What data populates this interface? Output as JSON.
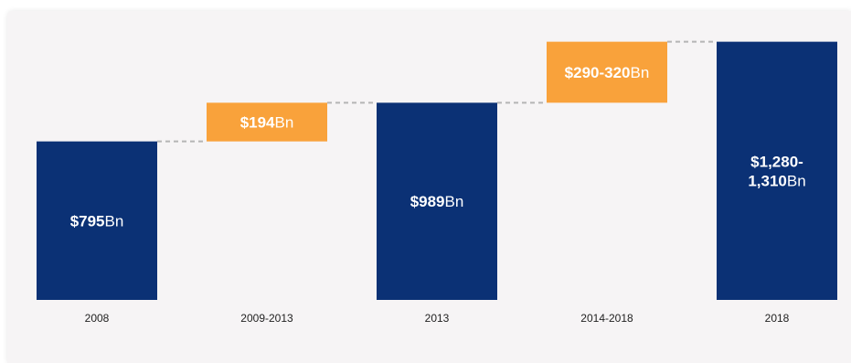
{
  "colors": {
    "total": "#0b3175",
    "increment": "#f9a23b",
    "connector": "#b5b5b5",
    "background": "#f6f4f5"
  },
  "chart_data": {
    "type": "bar",
    "subtype": "waterfall",
    "title": "",
    "xlabel": "",
    "ylabel": "",
    "grid": false,
    "legend": "none",
    "ylim": [
      0,
      1330
    ],
    "categories": [
      "2008",
      "2009-2013",
      "2013",
      "2014-2018",
      "2018"
    ],
    "bars": [
      {
        "category": "2008",
        "kind": "total",
        "start": 0,
        "end": 795,
        "label_bold": "$795",
        "label_unit": "Bn",
        "label_line2_bold": "",
        "label_line2_unit": ""
      },
      {
        "category": "2009-2013",
        "kind": "increment",
        "start": 795,
        "end": 989,
        "label_bold": "$194",
        "label_unit": "Bn",
        "label_line2_bold": "",
        "label_line2_unit": ""
      },
      {
        "category": "2013",
        "kind": "total",
        "start": 0,
        "end": 989,
        "label_bold": "$989",
        "label_unit": "Bn",
        "label_line2_bold": "",
        "label_line2_unit": ""
      },
      {
        "category": "2014-2018",
        "kind": "increment",
        "start": 989,
        "end": 1295,
        "label_bold": "$290-320",
        "label_unit": "Bn",
        "label_line2_bold": "",
        "label_line2_unit": ""
      },
      {
        "category": "2018",
        "kind": "total",
        "start": 0,
        "end": 1295,
        "label_bold": "$1,280-",
        "label_unit": "",
        "label_line2_bold": "1,310",
        "label_line2_unit": "Bn"
      }
    ]
  }
}
